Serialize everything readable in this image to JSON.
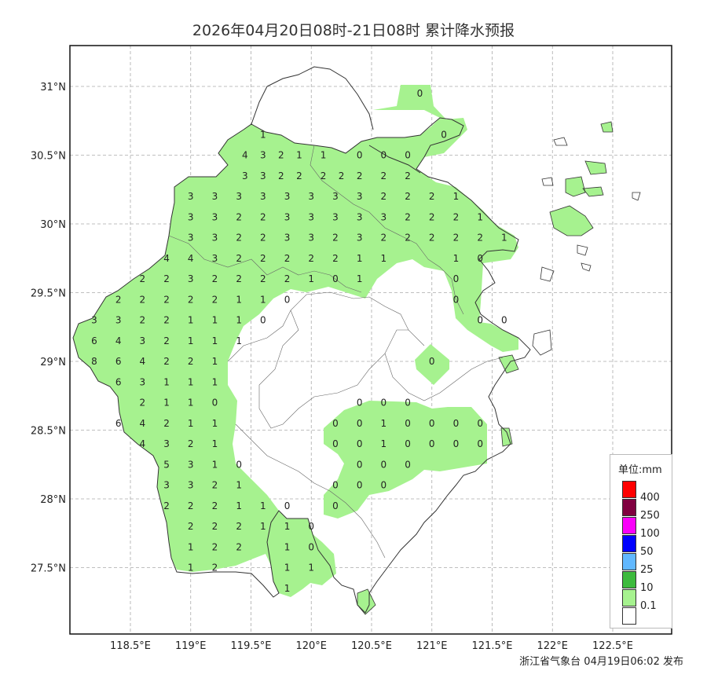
{
  "title": "2026年04月20日08时-21日08时 累计降水预报",
  "credit": "浙江省气象台 04月19日06:02 发布",
  "x_ticks": [
    "118.5°E",
    "119°E",
    "119.5°E",
    "120°E",
    "120.5°E",
    "121°E",
    "121.5°E",
    "122°E",
    "122.5°E"
  ],
  "y_ticks": [
    "31°N",
    "30.5°N",
    "30°N",
    "29.5°N",
    "29°N",
    "28.5°N",
    "28°N",
    "27.5°N"
  ],
  "colors": {
    "light_green": "#a6f28f",
    "border": "#222222",
    "grid": "#aaaaaa"
  },
  "legend": {
    "title": "单位:mm",
    "levels": [
      {
        "label": "400",
        "color": "#fe0000"
      },
      {
        "label": "250",
        "color": "#800040"
      },
      {
        "label": "100",
        "color": "#fa00fa"
      },
      {
        "label": "50",
        "color": "#0000fe"
      },
      {
        "label": "25",
        "color": "#61b8ff"
      },
      {
        "label": "10",
        "color": "#3dba3d"
      },
      {
        "label": "0.1",
        "color": "#a6f28f"
      },
      {
        "label": "",
        "color": "#ffffff"
      }
    ]
  },
  "grid_values": [
    {
      "lon": 120.9,
      "lat": 30.95,
      "v": "0"
    },
    {
      "lon": 121.1,
      "lat": 30.65,
      "v": "0"
    },
    {
      "lon": 119.6,
      "lat": 30.65,
      "v": "1"
    },
    {
      "lon": 119.45,
      "lat": 30.5,
      "v": "4"
    },
    {
      "lon": 119.6,
      "lat": 30.5,
      "v": "3"
    },
    {
      "lon": 119.75,
      "lat": 30.5,
      "v": "2"
    },
    {
      "lon": 119.9,
      "lat": 30.5,
      "v": "1"
    },
    {
      "lon": 120.1,
      "lat": 30.5,
      "v": "1"
    },
    {
      "lon": 120.4,
      "lat": 30.5,
      "v": "0"
    },
    {
      "lon": 120.6,
      "lat": 30.5,
      "v": "0"
    },
    {
      "lon": 120.8,
      "lat": 30.5,
      "v": "0"
    },
    {
      "lon": 119.45,
      "lat": 30.35,
      "v": "3"
    },
    {
      "lon": 119.6,
      "lat": 30.35,
      "v": "3"
    },
    {
      "lon": 119.75,
      "lat": 30.35,
      "v": "2"
    },
    {
      "lon": 119.9,
      "lat": 30.35,
      "v": "2"
    },
    {
      "lon": 120.1,
      "lat": 30.35,
      "v": "2"
    },
    {
      "lon": 120.25,
      "lat": 30.35,
      "v": "2"
    },
    {
      "lon": 120.4,
      "lat": 30.35,
      "v": "2"
    },
    {
      "lon": 120.6,
      "lat": 30.35,
      "v": "2"
    },
    {
      "lon": 120.8,
      "lat": 30.35,
      "v": "2"
    },
    {
      "lon": 119.0,
      "lat": 30.2,
      "v": "3"
    },
    {
      "lon": 119.2,
      "lat": 30.2,
      "v": "3"
    },
    {
      "lon": 119.4,
      "lat": 30.2,
      "v": "3"
    },
    {
      "lon": 119.6,
      "lat": 30.2,
      "v": "3"
    },
    {
      "lon": 119.8,
      "lat": 30.2,
      "v": "3"
    },
    {
      "lon": 120.0,
      "lat": 30.2,
      "v": "3"
    },
    {
      "lon": 120.2,
      "lat": 30.2,
      "v": "3"
    },
    {
      "lon": 120.4,
      "lat": 30.2,
      "v": "3"
    },
    {
      "lon": 120.6,
      "lat": 30.2,
      "v": "2"
    },
    {
      "lon": 120.8,
      "lat": 30.2,
      "v": "2"
    },
    {
      "lon": 121.0,
      "lat": 30.2,
      "v": "2"
    },
    {
      "lon": 121.2,
      "lat": 30.2,
      "v": "1"
    },
    {
      "lon": 119.0,
      "lat": 30.05,
      "v": "3"
    },
    {
      "lon": 119.2,
      "lat": 30.05,
      "v": "3"
    },
    {
      "lon": 119.4,
      "lat": 30.05,
      "v": "2"
    },
    {
      "lon": 119.6,
      "lat": 30.05,
      "v": "2"
    },
    {
      "lon": 119.8,
      "lat": 30.05,
      "v": "3"
    },
    {
      "lon": 120.0,
      "lat": 30.05,
      "v": "3"
    },
    {
      "lon": 120.2,
      "lat": 30.05,
      "v": "3"
    },
    {
      "lon": 120.4,
      "lat": 30.05,
      "v": "3"
    },
    {
      "lon": 120.6,
      "lat": 30.05,
      "v": "3"
    },
    {
      "lon": 120.8,
      "lat": 30.05,
      "v": "2"
    },
    {
      "lon": 121.0,
      "lat": 30.05,
      "v": "2"
    },
    {
      "lon": 121.2,
      "lat": 30.05,
      "v": "2"
    },
    {
      "lon": 121.4,
      "lat": 30.05,
      "v": "1"
    },
    {
      "lon": 119.0,
      "lat": 29.9,
      "v": "3"
    },
    {
      "lon": 119.2,
      "lat": 29.9,
      "v": "3"
    },
    {
      "lon": 119.4,
      "lat": 29.9,
      "v": "2"
    },
    {
      "lon": 119.6,
      "lat": 29.9,
      "v": "2"
    },
    {
      "lon": 119.8,
      "lat": 29.9,
      "v": "3"
    },
    {
      "lon": 120.0,
      "lat": 29.9,
      "v": "3"
    },
    {
      "lon": 120.2,
      "lat": 29.9,
      "v": "2"
    },
    {
      "lon": 120.4,
      "lat": 29.9,
      "v": "3"
    },
    {
      "lon": 120.6,
      "lat": 29.9,
      "v": "2"
    },
    {
      "lon": 120.8,
      "lat": 29.9,
      "v": "2"
    },
    {
      "lon": 121.0,
      "lat": 29.9,
      "v": "2"
    },
    {
      "lon": 121.2,
      "lat": 29.9,
      "v": "2"
    },
    {
      "lon": 121.4,
      "lat": 29.9,
      "v": "2"
    },
    {
      "lon": 121.6,
      "lat": 29.9,
      "v": "1"
    },
    {
      "lon": 118.8,
      "lat": 29.75,
      "v": "4"
    },
    {
      "lon": 119.0,
      "lat": 29.75,
      "v": "4"
    },
    {
      "lon": 119.2,
      "lat": 29.75,
      "v": "3"
    },
    {
      "lon": 119.4,
      "lat": 29.75,
      "v": "2"
    },
    {
      "lon": 119.6,
      "lat": 29.75,
      "v": "2"
    },
    {
      "lon": 119.8,
      "lat": 29.75,
      "v": "2"
    },
    {
      "lon": 120.0,
      "lat": 29.75,
      "v": "2"
    },
    {
      "lon": 120.2,
      "lat": 29.75,
      "v": "2"
    },
    {
      "lon": 120.4,
      "lat": 29.75,
      "v": "1"
    },
    {
      "lon": 120.6,
      "lat": 29.75,
      "v": "1"
    },
    {
      "lon": 121.2,
      "lat": 29.75,
      "v": "1"
    },
    {
      "lon": 121.4,
      "lat": 29.75,
      "v": "0"
    },
    {
      "lon": 118.6,
      "lat": 29.6,
      "v": "2"
    },
    {
      "lon": 118.8,
      "lat": 29.6,
      "v": "2"
    },
    {
      "lon": 119.0,
      "lat": 29.6,
      "v": "3"
    },
    {
      "lon": 119.2,
      "lat": 29.6,
      "v": "2"
    },
    {
      "lon": 119.4,
      "lat": 29.6,
      "v": "2"
    },
    {
      "lon": 119.6,
      "lat": 29.6,
      "v": "2"
    },
    {
      "lon": 119.8,
      "lat": 29.6,
      "v": "2"
    },
    {
      "lon": 120.0,
      "lat": 29.6,
      "v": "1"
    },
    {
      "lon": 120.2,
      "lat": 29.6,
      "v": "0"
    },
    {
      "lon": 120.4,
      "lat": 29.6,
      "v": "1"
    },
    {
      "lon": 121.2,
      "lat": 29.6,
      "v": "0"
    },
    {
      "lon": 118.4,
      "lat": 29.45,
      "v": "2"
    },
    {
      "lon": 118.6,
      "lat": 29.45,
      "v": "2"
    },
    {
      "lon": 118.8,
      "lat": 29.45,
      "v": "2"
    },
    {
      "lon": 119.0,
      "lat": 29.45,
      "v": "2"
    },
    {
      "lon": 119.2,
      "lat": 29.45,
      "v": "2"
    },
    {
      "lon": 119.4,
      "lat": 29.45,
      "v": "1"
    },
    {
      "lon": 119.6,
      "lat": 29.45,
      "v": "1"
    },
    {
      "lon": 119.8,
      "lat": 29.45,
      "v": "0"
    },
    {
      "lon": 121.2,
      "lat": 29.45,
      "v": "0"
    },
    {
      "lon": 118.2,
      "lat": 29.3,
      "v": "3"
    },
    {
      "lon": 118.4,
      "lat": 29.3,
      "v": "3"
    },
    {
      "lon": 118.6,
      "lat": 29.3,
      "v": "2"
    },
    {
      "lon": 118.8,
      "lat": 29.3,
      "v": "2"
    },
    {
      "lon": 119.0,
      "lat": 29.3,
      "v": "1"
    },
    {
      "lon": 119.2,
      "lat": 29.3,
      "v": "1"
    },
    {
      "lon": 119.4,
      "lat": 29.3,
      "v": "1"
    },
    {
      "lon": 119.6,
      "lat": 29.3,
      "v": "0"
    },
    {
      "lon": 121.4,
      "lat": 29.3,
      "v": "0"
    },
    {
      "lon": 121.6,
      "lat": 29.3,
      "v": "0"
    },
    {
      "lon": 118.2,
      "lat": 29.15,
      "v": "6"
    },
    {
      "lon": 118.4,
      "lat": 29.15,
      "v": "4"
    },
    {
      "lon": 118.6,
      "lat": 29.15,
      "v": "3"
    },
    {
      "lon": 118.8,
      "lat": 29.15,
      "v": "2"
    },
    {
      "lon": 119.0,
      "lat": 29.15,
      "v": "1"
    },
    {
      "lon": 119.2,
      "lat": 29.15,
      "v": "1"
    },
    {
      "lon": 119.4,
      "lat": 29.15,
      "v": "1"
    },
    {
      "lon": 118.2,
      "lat": 29.0,
      "v": "8"
    },
    {
      "lon": 118.4,
      "lat": 29.0,
      "v": "6"
    },
    {
      "lon": 118.6,
      "lat": 29.0,
      "v": "4"
    },
    {
      "lon": 118.8,
      "lat": 29.0,
      "v": "2"
    },
    {
      "lon": 119.0,
      "lat": 29.0,
      "v": "2"
    },
    {
      "lon": 119.2,
      "lat": 29.0,
      "v": "1"
    },
    {
      "lon": 121.0,
      "lat": 29.0,
      "v": "0"
    },
    {
      "lon": 118.4,
      "lat": 28.85,
      "v": "6"
    },
    {
      "lon": 118.6,
      "lat": 28.85,
      "v": "3"
    },
    {
      "lon": 118.8,
      "lat": 28.85,
      "v": "1"
    },
    {
      "lon": 119.0,
      "lat": 28.85,
      "v": "1"
    },
    {
      "lon": 119.2,
      "lat": 28.85,
      "v": "1"
    },
    {
      "lon": 118.6,
      "lat": 28.7,
      "v": "2"
    },
    {
      "lon": 118.8,
      "lat": 28.7,
      "v": "1"
    },
    {
      "lon": 119.0,
      "lat": 28.7,
      "v": "1"
    },
    {
      "lon": 119.2,
      "lat": 28.7,
      "v": "0"
    },
    {
      "lon": 120.4,
      "lat": 28.7,
      "v": "0"
    },
    {
      "lon": 120.6,
      "lat": 28.7,
      "v": "0"
    },
    {
      "lon": 120.8,
      "lat": 28.7,
      "v": "0"
    },
    {
      "lon": 118.4,
      "lat": 28.55,
      "v": "6"
    },
    {
      "lon": 118.6,
      "lat": 28.55,
      "v": "4"
    },
    {
      "lon": 118.8,
      "lat": 28.55,
      "v": "2"
    },
    {
      "lon": 119.0,
      "lat": 28.55,
      "v": "1"
    },
    {
      "lon": 119.2,
      "lat": 28.55,
      "v": "1"
    },
    {
      "lon": 120.2,
      "lat": 28.55,
      "v": "0"
    },
    {
      "lon": 120.4,
      "lat": 28.55,
      "v": "0"
    },
    {
      "lon": 120.6,
      "lat": 28.55,
      "v": "1"
    },
    {
      "lon": 120.8,
      "lat": 28.55,
      "v": "0"
    },
    {
      "lon": 121.0,
      "lat": 28.55,
      "v": "0"
    },
    {
      "lon": 121.2,
      "lat": 28.55,
      "v": "0"
    },
    {
      "lon": 121.4,
      "lat": 28.55,
      "v": "0"
    },
    {
      "lon": 118.6,
      "lat": 28.4,
      "v": "4"
    },
    {
      "lon": 118.8,
      "lat": 28.4,
      "v": "3"
    },
    {
      "lon": 119.0,
      "lat": 28.4,
      "v": "2"
    },
    {
      "lon": 119.2,
      "lat": 28.4,
      "v": "1"
    },
    {
      "lon": 120.2,
      "lat": 28.4,
      "v": "0"
    },
    {
      "lon": 120.4,
      "lat": 28.4,
      "v": "0"
    },
    {
      "lon": 120.6,
      "lat": 28.4,
      "v": "1"
    },
    {
      "lon": 120.8,
      "lat": 28.4,
      "v": "0"
    },
    {
      "lon": 121.0,
      "lat": 28.4,
      "v": "0"
    },
    {
      "lon": 121.2,
      "lat": 28.4,
      "v": "0"
    },
    {
      "lon": 121.4,
      "lat": 28.4,
      "v": "0"
    },
    {
      "lon": 118.8,
      "lat": 28.25,
      "v": "5"
    },
    {
      "lon": 119.0,
      "lat": 28.25,
      "v": "3"
    },
    {
      "lon": 119.2,
      "lat": 28.25,
      "v": "1"
    },
    {
      "lon": 119.4,
      "lat": 28.25,
      "v": "0"
    },
    {
      "lon": 120.4,
      "lat": 28.25,
      "v": "0"
    },
    {
      "lon": 120.6,
      "lat": 28.25,
      "v": "0"
    },
    {
      "lon": 120.8,
      "lat": 28.25,
      "v": "0"
    },
    {
      "lon": 118.8,
      "lat": 28.1,
      "v": "3"
    },
    {
      "lon": 119.0,
      "lat": 28.1,
      "v": "3"
    },
    {
      "lon": 119.2,
      "lat": 28.1,
      "v": "2"
    },
    {
      "lon": 119.4,
      "lat": 28.1,
      "v": "1"
    },
    {
      "lon": 120.2,
      "lat": 28.1,
      "v": "0"
    },
    {
      "lon": 120.4,
      "lat": 28.1,
      "v": "0"
    },
    {
      "lon": 120.6,
      "lat": 28.1,
      "v": "0"
    },
    {
      "lon": 118.8,
      "lat": 27.95,
      "v": "2"
    },
    {
      "lon": 119.0,
      "lat": 27.95,
      "v": "2"
    },
    {
      "lon": 119.2,
      "lat": 27.95,
      "v": "2"
    },
    {
      "lon": 119.4,
      "lat": 27.95,
      "v": "1"
    },
    {
      "lon": 119.6,
      "lat": 27.95,
      "v": "1"
    },
    {
      "lon": 119.8,
      "lat": 27.95,
      "v": "0"
    },
    {
      "lon": 120.2,
      "lat": 27.95,
      "v": "0"
    },
    {
      "lon": 119.0,
      "lat": 27.8,
      "v": "2"
    },
    {
      "lon": 119.2,
      "lat": 27.8,
      "v": "2"
    },
    {
      "lon": 119.4,
      "lat": 27.8,
      "v": "2"
    },
    {
      "lon": 119.6,
      "lat": 27.8,
      "v": "1"
    },
    {
      "lon": 119.8,
      "lat": 27.8,
      "v": "1"
    },
    {
      "lon": 120.0,
      "lat": 27.8,
      "v": "0"
    },
    {
      "lon": 119.0,
      "lat": 27.65,
      "v": "1"
    },
    {
      "lon": 119.2,
      "lat": 27.65,
      "v": "2"
    },
    {
      "lon": 119.4,
      "lat": 27.65,
      "v": "2"
    },
    {
      "lon": 119.8,
      "lat": 27.65,
      "v": "1"
    },
    {
      "lon": 120.0,
      "lat": 27.65,
      "v": "0"
    },
    {
      "lon": 119.0,
      "lat": 27.5,
      "v": "1"
    },
    {
      "lon": 119.2,
      "lat": 27.5,
      "v": "2"
    },
    {
      "lon": 119.8,
      "lat": 27.5,
      "v": "1"
    },
    {
      "lon": 120.0,
      "lat": 27.5,
      "v": "1"
    },
    {
      "lon": 119.8,
      "lat": 27.35,
      "v": "1"
    }
  ]
}
